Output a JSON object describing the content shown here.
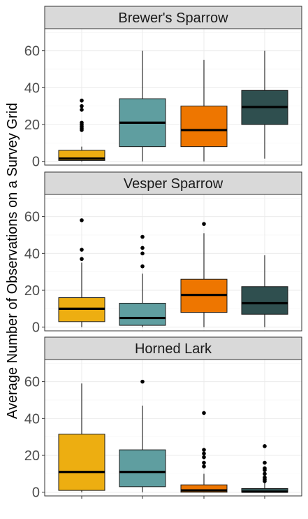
{
  "chart_data": {
    "type": "boxplot",
    "ylabel": "Average Number of Observations on a Survey Grid",
    "xlabel": "",
    "ylim": [
      -2,
      72
    ],
    "yticks": [
      0,
      20,
      40,
      60
    ],
    "grid": true,
    "group_colors": [
      "#EDAE11",
      "#5F9EA0",
      "#EE7600",
      "#2F4F4F"
    ],
    "panels": [
      {
        "title": "Brewer's Sparrow",
        "boxes": [
          {
            "q1": 0.5,
            "median": 1.5,
            "q3": 6,
            "low": 0,
            "high": 8,
            "outliers": [
              17,
              18,
              19,
              20,
              21,
              28,
              30,
              33
            ]
          },
          {
            "q1": 8,
            "median": 21,
            "q3": 34,
            "low": 0,
            "high": 60,
            "outliers": []
          },
          {
            "q1": 8,
            "median": 17,
            "q3": 30,
            "low": 0,
            "high": 55,
            "outliers": []
          },
          {
            "q1": 20,
            "median": 29.5,
            "q3": 38.5,
            "low": 1.5,
            "high": 60,
            "outliers": []
          }
        ]
      },
      {
        "title": "Vesper Sparrow",
        "boxes": [
          {
            "q1": 3,
            "median": 10,
            "q3": 16,
            "low": 0,
            "high": 35,
            "outliers": [
              37,
              42,
              58
            ]
          },
          {
            "q1": 1,
            "median": 5,
            "q3": 13,
            "low": 0,
            "high": 29,
            "outliers": [
              33,
              40,
              43,
              49
            ]
          },
          {
            "q1": 8,
            "median": 17.5,
            "q3": 26,
            "low": 0,
            "high": 51,
            "outliers": [
              56
            ]
          },
          {
            "q1": 7,
            "median": 13,
            "q3": 22,
            "low": 0,
            "high": 39,
            "outliers": []
          }
        ]
      },
      {
        "title": "Horned Lark",
        "boxes": [
          {
            "q1": 1,
            "median": 11,
            "q3": 31.5,
            "low": 0,
            "high": 59,
            "outliers": []
          },
          {
            "q1": 3,
            "median": 11,
            "q3": 23,
            "low": 0,
            "high": 47,
            "outliers": [
              60
            ]
          },
          {
            "q1": 0,
            "median": 1,
            "q3": 4,
            "low": 0,
            "high": 10,
            "outliers": [
              14,
              16,
              19,
              21,
              23,
              43
            ]
          },
          {
            "q1": 0,
            "median": 0.3,
            "q3": 2,
            "low": 0,
            "high": 5,
            "outliers": [
              6,
              7,
              8,
              10,
              12,
              13,
              16,
              25
            ]
          }
        ]
      }
    ]
  }
}
